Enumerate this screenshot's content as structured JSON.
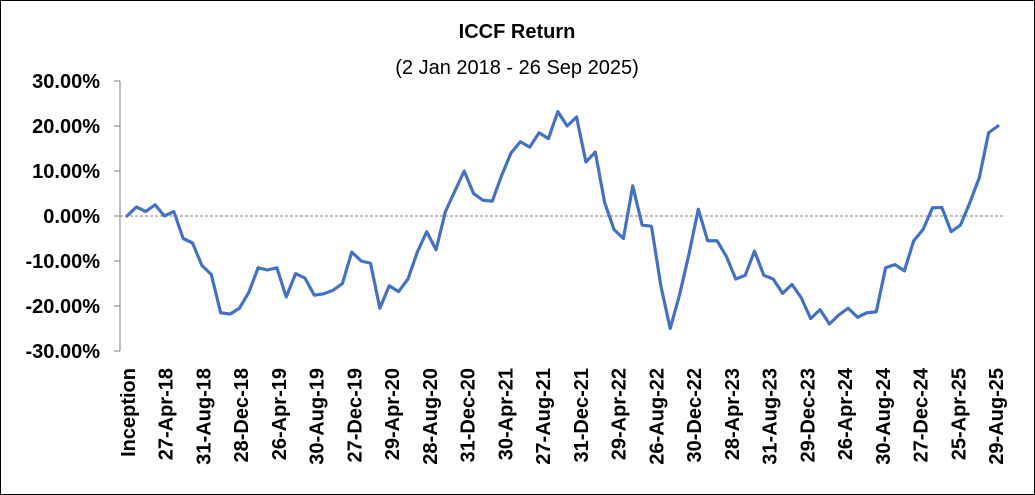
{
  "chart_data": {
    "type": "line",
    "title": "ICCF Return",
    "subtitle": "(2 Jan 2018 - 26 Sep 2025)",
    "xlabel": "",
    "ylabel": "",
    "ylim": [
      -30,
      30
    ],
    "y_ticks": [
      30,
      20,
      10,
      0,
      -10,
      -20,
      -30
    ],
    "y_tick_labels": [
      "30.00%",
      "20.00%",
      "10.00%",
      "0.00%",
      "-10.00%",
      "-20.00%",
      "-30.00%"
    ],
    "x_tick_labels": [
      "Inception",
      "27-Apr-18",
      "31-Aug-18",
      "28-Dec-18",
      "26-Apr-19",
      "30-Aug-19",
      "27-Dec-19",
      "29-Apr-20",
      "28-Aug-20",
      "31-Dec-20",
      "30-Apr-21",
      "27-Aug-21",
      "31-Dec-21",
      "29-Apr-22",
      "26-Aug-22",
      "30-Dec-22",
      "28-Apr-23",
      "31-Aug-23",
      "29-Dec-23",
      "26-Apr-24",
      "30-Aug-24",
      "27-Dec-24",
      "25-Apr-25",
      "29-Aug-25"
    ],
    "grid": false,
    "zero_line": "dashed",
    "series": [
      {
        "color": "#4472C4",
        "values": [
          0,
          2,
          1,
          2.5,
          0,
          1,
          -5,
          -6,
          -11,
          -13,
          -21.5,
          -21.8,
          -20.5,
          -17,
          -11.5,
          -12,
          -11.5,
          -18,
          -12.8,
          -13.8,
          -17.6,
          -17.3,
          -16.5,
          -15,
          -8,
          -10,
          -10.5,
          -20.5,
          -15.5,
          -16.8,
          -14,
          -8,
          -3.5,
          -7.5,
          1,
          5.5,
          10,
          5,
          3.5,
          3.3,
          9,
          14,
          16.5,
          15.3,
          18.5,
          17.2,
          23.2,
          20,
          22,
          12,
          14.2,
          3,
          -3,
          -5,
          6.7,
          -2,
          -2.3,
          -15.5,
          -25,
          -17.5,
          -8.5,
          1.5,
          -5.5,
          -5.5,
          -9,
          -14,
          -13.2,
          -7.8,
          -13.2,
          -14,
          -17.2,
          -15.2,
          -18.2,
          -22.8,
          -20.8,
          -24,
          -22,
          -20.5,
          -22.5,
          -21.5,
          -21.3,
          -11.5,
          -10.8,
          -12.2,
          -5.5,
          -3,
          1.8,
          1.9,
          -3.5,
          -2,
          3,
          8.5,
          18.5,
          20
        ]
      }
    ]
  }
}
